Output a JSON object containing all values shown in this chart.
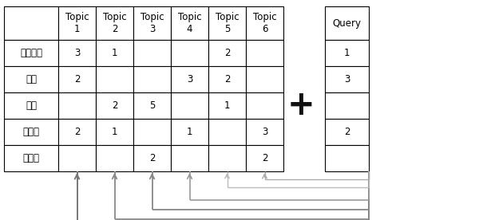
{
  "main_table": {
    "row_labels": [
      "프로그램",
      "개발",
      "기록",
      "데이터",
      "서비스"
    ],
    "col_labels": [
      "Topic\n1",
      "Topic\n2",
      "Topic\n3",
      "Topic\n4",
      "Topic\n5",
      "Topic\n6"
    ],
    "data": [
      [
        "3",
        "1",
        "",
        "",
        "2",
        ""
      ],
      [
        "2",
        "",
        "",
        "3",
        "2",
        ""
      ],
      [
        "",
        "2",
        "5",
        "",
        "1",
        ""
      ],
      [
        "2",
        "1",
        "",
        "1",
        "",
        "3"
      ],
      [
        "",
        "",
        "2",
        "",
        "",
        "2"
      ]
    ]
  },
  "query_table": {
    "col_label": "Query",
    "data": [
      "1",
      "3",
      "",
      "2",
      ""
    ]
  },
  "arrow_colors": [
    "#888888",
    "#999999",
    "#888888",
    "#aaaaaa",
    "#bbbbbb",
    "#aaaaaa"
  ],
  "grid_color": "#000000",
  "bg_color": "#ffffff",
  "font_size": 8.5
}
